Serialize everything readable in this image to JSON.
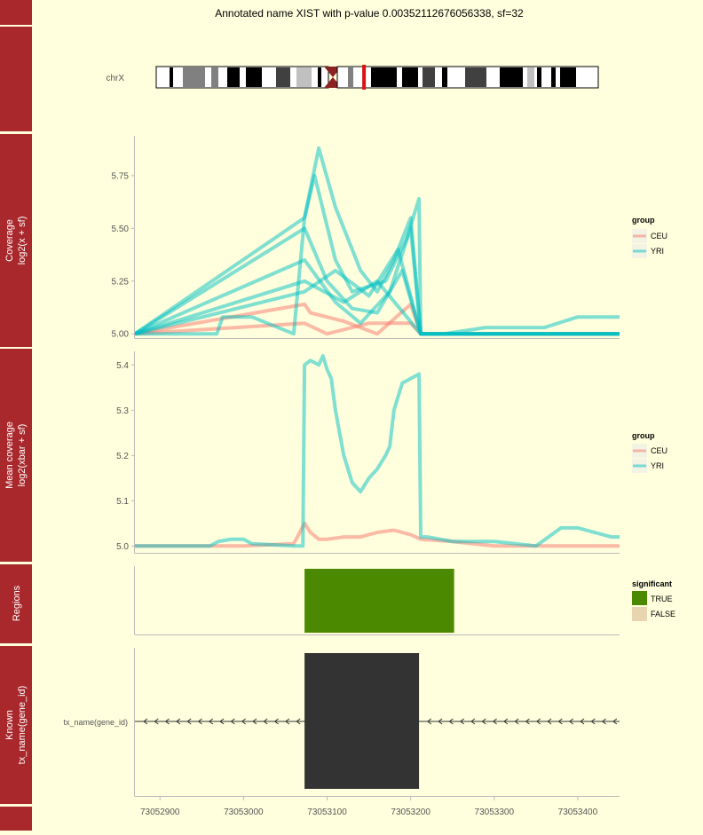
{
  "title": "Annotated name XIST with p-value 0.00352112676056338, sf=32",
  "colors": {
    "strip": "#a8282c",
    "background": "#ffffdd",
    "CEU": "#f8766d",
    "YRI": "#00bfc4",
    "TRUE": "#4b8a00",
    "FALSE": "#e8d5b0",
    "exon": "#333333",
    "ideogram_highlight": "#dd1111"
  },
  "ideogram": {
    "label": "chrX",
    "highlight_position_fraction": 0.47
  },
  "x_axis": {
    "range": [
      73052870,
      73053450
    ],
    "ticks": [
      "73052900",
      "73053000",
      "73053100",
      "73053200",
      "73053300",
      "73053400"
    ]
  },
  "panels": {
    "coverage": {
      "strip_label_lines": [
        "Coverage",
        "log2(x + sf)"
      ],
      "yticks": [
        "5.75",
        "5.50",
        "5.25",
        "5.00"
      ],
      "legend_title": "group",
      "legend_items": [
        "CEU",
        "YRI"
      ]
    },
    "mean": {
      "strip_label_lines": [
        "Mean coverage",
        "log2(xbar + sf)"
      ],
      "yticks": [
        "5.4",
        "5.3",
        "5.2",
        "5.1",
        "5.0"
      ],
      "legend_title": "group",
      "legend_items": [
        "CEU",
        "YRI"
      ]
    },
    "regions": {
      "strip_label_lines": [
        "Regions"
      ],
      "legend_title": "significant",
      "legend_items": [
        "TRUE",
        "FALSE"
      ]
    },
    "known": {
      "strip_label_lines": [
        "Known",
        "tx_name(gene_id)"
      ],
      "track_label": "tx_name(gene_id)"
    }
  },
  "chart_data": [
    {
      "type": "line",
      "panel": "coverage",
      "xlim": [
        73052870,
        73053450
      ],
      "ylim": [
        4.98,
        5.93
      ],
      "series": [
        {
          "name": "YRI",
          "x": [
            73052870,
            73052968,
            73052975,
            73053010,
            73053060,
            73053073,
            73053090,
            73053110,
            73053140,
            73053160,
            73053180,
            73053200,
            73053212,
            73053240,
            73053290,
            73053360,
            73053400,
            73053450
          ],
          "y": [
            5.0,
            5.0,
            5.08,
            5.08,
            5.0,
            5.55,
            5.88,
            5.6,
            5.3,
            5.2,
            5.35,
            5.55,
            5.0,
            5.0,
            5.03,
            5.03,
            5.08,
            5.08
          ]
        },
        {
          "name": "YRI",
          "x": [
            73052870,
            73053073,
            73053085,
            73053110,
            73053130,
            73053170,
            73053195,
            73053210,
            73053212,
            73053450
          ],
          "y": [
            5.0,
            5.55,
            5.75,
            5.35,
            5.2,
            5.25,
            5.45,
            5.64,
            5.0,
            5.0
          ]
        },
        {
          "name": "YRI",
          "x": [
            73052870,
            73053073,
            73053100,
            73053130,
            73053160,
            73053190,
            73053212,
            73053450
          ],
          "y": [
            5.0,
            5.5,
            5.25,
            5.12,
            5.1,
            5.3,
            5.0,
            5.0
          ]
        },
        {
          "name": "YRI",
          "x": [
            73052870,
            73053073,
            73053110,
            73053140,
            73053175,
            73053200,
            73053212,
            73053450
          ],
          "y": [
            5.0,
            5.35,
            5.15,
            5.05,
            5.2,
            5.5,
            5.0,
            5.0
          ]
        },
        {
          "name": "YRI",
          "x": [
            73052870,
            73053073,
            73053110,
            73053150,
            73053185,
            73053212,
            73053450
          ],
          "y": [
            5.0,
            5.2,
            5.3,
            5.18,
            5.4,
            5.0,
            5.0
          ]
        },
        {
          "name": "YRI",
          "x": [
            73052870,
            73053073,
            73053120,
            73053160,
            73053212,
            73053450
          ],
          "y": [
            5.0,
            5.25,
            5.15,
            5.25,
            5.0,
            5.0
          ]
        },
        {
          "name": "CEU",
          "x": [
            73052870,
            73053073,
            73053080,
            73053120,
            73053160,
            73053200,
            73053212,
            73053450
          ],
          "y": [
            5.0,
            5.14,
            5.1,
            5.06,
            5.0,
            5.14,
            5.0,
            5.0
          ]
        },
        {
          "name": "CEU",
          "x": [
            73052870,
            73053073,
            73053100,
            73053150,
            73053200,
            73053212,
            73053450
          ],
          "y": [
            5.0,
            5.05,
            5.0,
            5.05,
            5.05,
            5.0,
            5.0
          ]
        }
      ]
    },
    {
      "type": "line",
      "panel": "mean",
      "xlim": [
        73052870,
        73053450
      ],
      "ylim": [
        4.985,
        5.43
      ],
      "series": [
        {
          "name": "YRI",
          "x": [
            73052870,
            73052960,
            73052970,
            73052985,
            73053000,
            73053010,
            73053060,
            73053071,
            73053073,
            73053080,
            73053090,
            73053095,
            73053100,
            73053105,
            73053110,
            73053120,
            73053130,
            73053140,
            73053150,
            73053160,
            73053170,
            73053175,
            73053180,
            73053190,
            73053200,
            73053210,
            73053212,
            73053220,
            73053250,
            73053300,
            73053350,
            73053380,
            73053400,
            73053420,
            73053440,
            73053450
          ],
          "y": [
            5.0,
            5.0,
            5.01,
            5.015,
            5.015,
            5.005,
            5.0,
            5.0,
            5.4,
            5.41,
            5.4,
            5.42,
            5.39,
            5.37,
            5.3,
            5.2,
            5.14,
            5.12,
            5.15,
            5.17,
            5.2,
            5.22,
            5.3,
            5.36,
            5.37,
            5.38,
            5.02,
            5.02,
            5.01,
            5.01,
            5.0,
            5.04,
            5.04,
            5.03,
            5.02,
            5.02
          ]
        },
        {
          "name": "CEU",
          "x": [
            73052870,
            73052960,
            73053000,
            73053060,
            73053073,
            73053080,
            73053090,
            73053100,
            73053120,
            73053140,
            73053160,
            73053180,
            73053200,
            73053212,
            73053250,
            73053300,
            73053350,
            73053450
          ],
          "y": [
            5.0,
            5.0,
            5.0,
            5.005,
            5.05,
            5.03,
            5.015,
            5.015,
            5.02,
            5.02,
            5.03,
            5.035,
            5.025,
            5.015,
            5.01,
            5.0,
            5.0,
            5.0
          ]
        }
      ]
    },
    {
      "type": "bar",
      "panel": "regions",
      "xlim": [
        73052870,
        73053450
      ],
      "regions": [
        {
          "start": 73053073,
          "end": 73053252,
          "significant": "TRUE"
        }
      ]
    },
    {
      "type": "bar",
      "panel": "known",
      "xlim": [
        73052870,
        73053450
      ],
      "exons": [
        {
          "start": 73053073,
          "end": 73053210
        }
      ],
      "strand": "-"
    }
  ]
}
